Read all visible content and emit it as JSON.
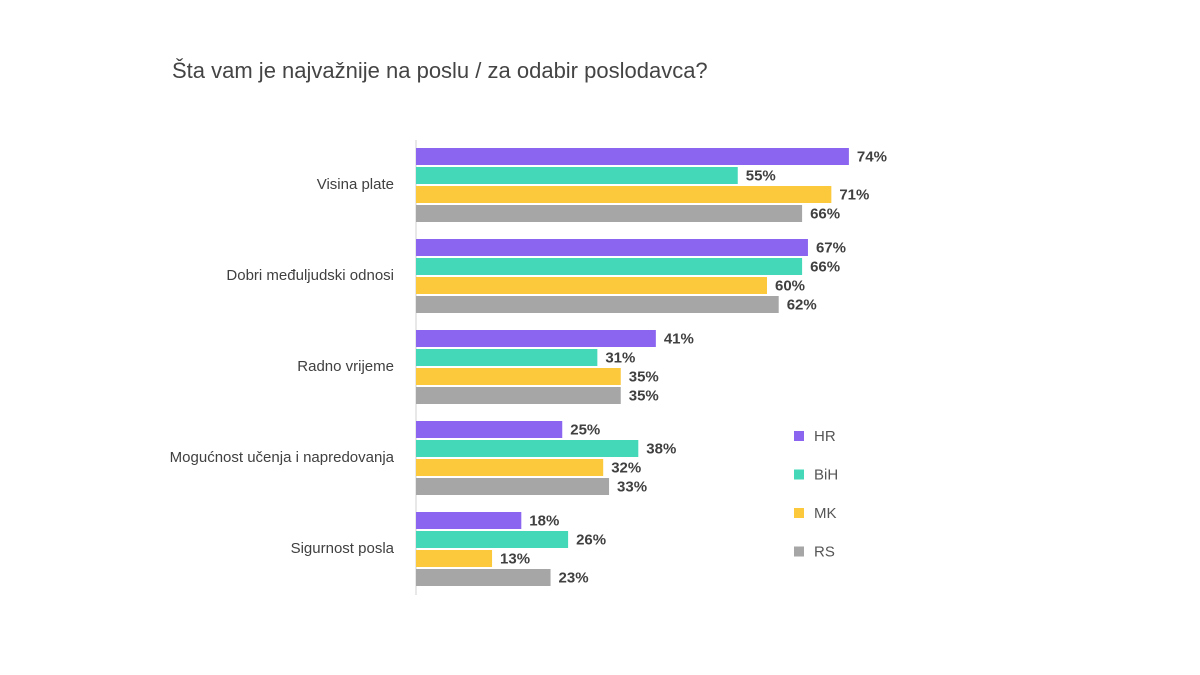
{
  "chart_data": {
    "type": "bar",
    "orientation": "horizontal",
    "title": "Šta vam je najvažnije na poslu / za odabir poslodavca?",
    "categories": [
      "Visina plate",
      "Dobri međuljudski odnosi",
      "Radno vrijeme",
      "Mogućnost učenja i napredovanja",
      "Sigurnost posla"
    ],
    "series": [
      {
        "name": "HR",
        "color": "#8b65ef",
        "values": [
          74,
          67,
          41,
          25,
          18
        ],
        "value_labels": [
          "74%",
          "67%",
          "41%",
          "25%",
          "18%"
        ]
      },
      {
        "name": "BiH",
        "color": "#44d8b9",
        "values": [
          55,
          66,
          31,
          38,
          26
        ],
        "value_labels": [
          "55%",
          "66%",
          "31%",
          "38%",
          "26%"
        ]
      },
      {
        "name": "MK",
        "color": "#fcc83c",
        "values": [
          71,
          60,
          35,
          32,
          13
        ],
        "value_labels": [
          "71%",
          "60%",
          "35%",
          "32%",
          "13%"
        ]
      },
      {
        "name": "RS",
        "color": "#a6a6a6",
        "values": [
          66,
          62,
          35,
          33,
          23
        ],
        "value_labels": [
          "66%",
          "62%",
          "35%",
          "33%",
          "23%"
        ]
      }
    ],
    "legend": "right"
  }
}
